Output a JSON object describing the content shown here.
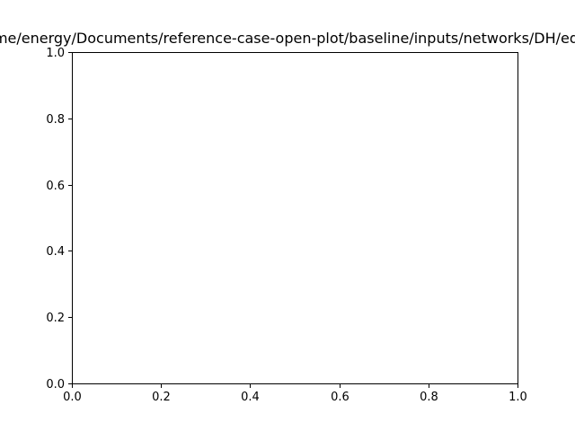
{
  "chart_data": {
    "type": "line",
    "title": "/home/energy/Documents/reference-case-open-plot/baseline/inputs/networks/DH/edges",
    "xlabel": "",
    "ylabel": "",
    "xlim": [
      0.0,
      1.0
    ],
    "ylim": [
      0.0,
      1.0
    ],
    "xticks": [
      "0.0",
      "0.2",
      "0.4",
      "0.6",
      "0.8",
      "1.0"
    ],
    "yticks": [
      "0.0",
      "0.2",
      "0.4",
      "0.6",
      "0.8",
      "1.0"
    ],
    "series": [],
    "grid": false,
    "legend": "none"
  }
}
